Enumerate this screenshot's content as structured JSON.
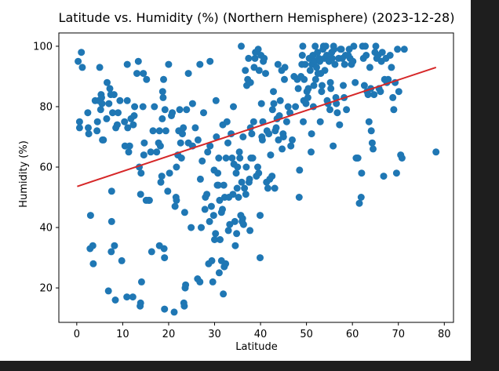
{
  "window": {
    "background": "#1e1e1e",
    "figure_background": "#ffffff"
  },
  "chart_data": {
    "type": "scatter",
    "title": "Latitude vs. Humidity (%) (Northern Hemisphere) (2023-12-28)",
    "xlabel": "Latitude",
    "ylabel": "Humidity (%)",
    "xlim": [
      -3.9,
      82
    ],
    "ylim": [
      8.6,
      104.4
    ],
    "xticks": [
      0,
      10,
      20,
      30,
      40,
      50,
      60,
      70,
      80
    ],
    "yticks": [
      20,
      40,
      60,
      80,
      100
    ],
    "grid": false,
    "legend": "none",
    "point_color": "#1f77b4",
    "line_color": "#d62728",
    "regression_line": {
      "x": [
        0.1,
        78.2
      ],
      "y": [
        53.6,
        93.0
      ]
    },
    "points": [
      [
        0.3,
        95
      ],
      [
        0.6,
        73
      ],
      [
        0.6,
        75
      ],
      [
        1,
        98
      ],
      [
        1.2,
        93
      ],
      [
        2.4,
        78
      ],
      [
        2.5,
        73
      ],
      [
        2.6,
        71
      ],
      [
        2.9,
        33
      ],
      [
        3,
        44
      ],
      [
        3.5,
        34
      ],
      [
        3.6,
        28
      ],
      [
        4,
        82
      ],
      [
        4.4,
        72
      ],
      [
        4.5,
        75
      ],
      [
        4.8,
        82
      ],
      [
        5,
        93
      ],
      [
        5.2,
        79
      ],
      [
        5.3,
        84
      ],
      [
        5.4,
        83
      ],
      [
        5.5,
        81
      ],
      [
        5.6,
        69
      ],
      [
        5.8,
        69
      ],
      [
        6.5,
        76
      ],
      [
        6.6,
        88
      ],
      [
        6.9,
        19
      ],
      [
        7,
        81
      ],
      [
        7.2,
        86
      ],
      [
        7.4,
        84
      ],
      [
        7.5,
        32
      ],
      [
        7.6,
        52
      ],
      [
        7.6,
        42
      ],
      [
        7.8,
        78
      ],
      [
        8.1,
        84
      ],
      [
        8.2,
        34
      ],
      [
        8.4,
        16
      ],
      [
        8.5,
        73
      ],
      [
        8.8,
        74
      ],
      [
        9,
        78
      ],
      [
        9.4,
        82
      ],
      [
        9.8,
        29
      ],
      [
        10.4,
        75
      ],
      [
        10.5,
        67
      ],
      [
        10.9,
        17
      ],
      [
        11,
        94
      ],
      [
        11,
        82
      ],
      [
        11.1,
        73
      ],
      [
        11.3,
        65
      ],
      [
        11.5,
        67
      ],
      [
        11.8,
        76
      ],
      [
        12.2,
        17
      ],
      [
        12.3,
        74
      ],
      [
        12.5,
        77
      ],
      [
        12.6,
        80
      ],
      [
        13.1,
        91
      ],
      [
        13.4,
        95
      ],
      [
        13.6,
        60
      ],
      [
        13.8,
        14
      ],
      [
        13.9,
        51
      ],
      [
        13.9,
        15
      ],
      [
        14,
        58
      ],
      [
        14.1,
        22
      ],
      [
        14.4,
        80
      ],
      [
        14.5,
        91
      ],
      [
        14.6,
        64
      ],
      [
        14.7,
        68
      ],
      [
        15.1,
        49
      ],
      [
        15.2,
        89
      ],
      [
        15.6,
        49
      ],
      [
        15.8,
        49
      ],
      [
        16.1,
        65
      ],
      [
        16.3,
        32
      ],
      [
        16.6,
        72
      ],
      [
        16.9,
        80
      ],
      [
        17.4,
        65
      ],
      [
        17.8,
        68
      ],
      [
        18,
        72
      ],
      [
        18,
        34
      ],
      [
        18.2,
        67
      ],
      [
        18.3,
        55
      ],
      [
        18.5,
        57
      ],
      [
        18.6,
        76
      ],
      [
        18.7,
        85
      ],
      [
        18.8,
        83
      ],
      [
        18.9,
        89
      ],
      [
        19,
        33
      ],
      [
        19.1,
        13
      ],
      [
        19.1,
        30
      ],
      [
        19.2,
        79
      ],
      [
        19.4,
        72
      ],
      [
        19.8,
        52
      ],
      [
        20,
        94
      ],
      [
        20.2,
        58
      ],
      [
        20.6,
        77
      ],
      [
        20.8,
        78
      ],
      [
        21.2,
        12
      ],
      [
        21.4,
        47
      ],
      [
        21.6,
        50
      ],
      [
        21.7,
        60
      ],
      [
        21.7,
        49
      ],
      [
        22,
        64
      ],
      [
        22.2,
        72
      ],
      [
        22.4,
        79
      ],
      [
        22.6,
        68
      ],
      [
        22.8,
        63
      ],
      [
        23,
        71
      ],
      [
        23.2,
        73
      ],
      [
        23.3,
        15
      ],
      [
        23.4,
        14
      ],
      [
        23.5,
        45
      ],
      [
        23.6,
        20
      ],
      [
        23.7,
        21
      ],
      [
        23.9,
        79
      ],
      [
        24.3,
        91
      ],
      [
        24.3,
        68
      ],
      [
        24.9,
        40
      ],
      [
        25.2,
        67
      ],
      [
        25.2,
        81
      ],
      [
        25.8,
        73
      ],
      [
        26.3,
        23
      ],
      [
        26.4,
        69
      ],
      [
        26.8,
        94
      ],
      [
        26.8,
        22
      ],
      [
        26.9,
        56
      ],
      [
        27.1,
        40
      ],
      [
        27.3,
        62
      ],
      [
        27.6,
        78
      ],
      [
        27.9,
        46
      ],
      [
        28,
        50
      ],
      [
        28.3,
        51
      ],
      [
        28.5,
        65
      ],
      [
        28.7,
        28
      ],
      [
        28.9,
        42
      ],
      [
        29,
        95
      ],
      [
        29,
        67
      ],
      [
        29.3,
        47
      ],
      [
        29.4,
        29
      ],
      [
        29.6,
        22
      ],
      [
        29.8,
        44
      ],
      [
        29.9,
        59
      ],
      [
        30,
        36
      ],
      [
        30.2,
        38
      ],
      [
        30.3,
        82
      ],
      [
        30.4,
        70
      ],
      [
        30.6,
        54
      ],
      [
        30.7,
        58
      ],
      [
        30.8,
        54
      ],
      [
        30.9,
        63
      ],
      [
        31,
        25
      ],
      [
        31.1,
        49
      ],
      [
        31.2,
        36
      ],
      [
        31.5,
        29
      ],
      [
        31.5,
        45
      ],
      [
        31.7,
        46
      ],
      [
        31.8,
        74
      ],
      [
        31.9,
        18
      ],
      [
        32,
        54
      ],
      [
        32.1,
        27
      ],
      [
        32.2,
        50
      ],
      [
        32.4,
        28
      ],
      [
        32.5,
        63
      ],
      [
        32.7,
        75
      ],
      [
        32.9,
        68
      ],
      [
        33,
        39
      ],
      [
        33.1,
        50
      ],
      [
        33.3,
        41
      ],
      [
        33.6,
        71
      ],
      [
        33.8,
        63
      ],
      [
        34,
        51
      ],
      [
        34.1,
        80
      ],
      [
        34.2,
        61
      ],
      [
        34.4,
        42
      ],
      [
        34.5,
        34
      ],
      [
        34.7,
        58
      ],
      [
        34.8,
        38
      ],
      [
        34.9,
        53
      ],
      [
        35,
        60
      ],
      [
        35.2,
        50
      ],
      [
        35.4,
        65
      ],
      [
        35.5,
        63
      ],
      [
        35.7,
        44
      ],
      [
        35.8,
        100
      ],
      [
        35.9,
        55
      ],
      [
        36,
        42
      ],
      [
        36.1,
        43
      ],
      [
        36.2,
        70
      ],
      [
        36.3,
        41
      ],
      [
        36.5,
        53
      ],
      [
        36.7,
        92
      ],
      [
        36.8,
        51
      ],
      [
        36.9,
        60
      ],
      [
        37,
        87
      ],
      [
        37.2,
        89
      ],
      [
        37.4,
        96
      ],
      [
        37.5,
        55
      ],
      [
        37.6,
        56
      ],
      [
        37.7,
        39
      ],
      [
        37.8,
        73
      ],
      [
        37.8,
        88
      ],
      [
        37.9,
        63
      ],
      [
        38.1,
        71
      ],
      [
        38.3,
        63
      ],
      [
        38.5,
        75
      ],
      [
        38.6,
        93
      ],
      [
        38.8,
        96
      ],
      [
        38.9,
        98
      ],
      [
        39.1,
        57
      ],
      [
        39.4,
        60
      ],
      [
        39.5,
        99
      ],
      [
        39.6,
        58
      ],
      [
        39.7,
        92
      ],
      [
        39.9,
        30
      ],
      [
        39.9,
        44
      ],
      [
        40.1,
        97
      ],
      [
        40.2,
        81
      ],
      [
        40.3,
        70
      ],
      [
        40.4,
        69
      ],
      [
        40.5,
        75
      ],
      [
        40.6,
        95
      ],
      [
        40.8,
        96
      ],
      [
        41.1,
        91
      ],
      [
        41.3,
        55
      ],
      [
        41.4,
        72
      ],
      [
        41.6,
        53
      ],
      [
        41.8,
        71
      ],
      [
        42,
        56
      ],
      [
        42.2,
        64
      ],
      [
        42.5,
        57
      ],
      [
        42.6,
        79
      ],
      [
        42.8,
        85
      ],
      [
        42.9,
        81
      ],
      [
        43.1,
        53
      ],
      [
        43.2,
        72
      ],
      [
        43.4,
        73
      ],
      [
        43.6,
        76
      ],
      [
        43.8,
        94
      ],
      [
        43.9,
        69
      ],
      [
        44.1,
        77
      ],
      [
        44.3,
        82
      ],
      [
        44.6,
        92
      ],
      [
        44.7,
        66
      ],
      [
        44.9,
        71
      ],
      [
        45,
        70
      ],
      [
        45.2,
        89
      ],
      [
        45.3,
        93
      ],
      [
        45.7,
        75
      ],
      [
        46,
        80
      ],
      [
        46.4,
        78
      ],
      [
        46.6,
        67
      ],
      [
        46.9,
        69
      ],
      [
        47.3,
        90
      ],
      [
        47.6,
        80
      ],
      [
        48,
        89
      ],
      [
        48.2,
        86
      ],
      [
        48.4,
        50
      ],
      [
        48.5,
        59
      ],
      [
        48.8,
        90
      ],
      [
        49,
        94
      ],
      [
        49.1,
        97
      ],
      [
        49.2,
        100
      ],
      [
        49.3,
        75
      ],
      [
        49.4,
        82
      ],
      [
        49.5,
        89
      ],
      [
        49.7,
        94
      ],
      [
        49.9,
        81
      ],
      [
        50.1,
        85
      ],
      [
        50.3,
        83
      ],
      [
        50.4,
        86
      ],
      [
        50.6,
        96
      ],
      [
        50.8,
        92
      ],
      [
        51,
        65
      ],
      [
        51.1,
        71
      ],
      [
        51.2,
        94
      ],
      [
        51.4,
        97
      ],
      [
        51.5,
        80
      ],
      [
        51.6,
        87
      ],
      [
        51.8,
        95
      ],
      [
        51.9,
        100
      ],
      [
        52,
        89
      ],
      [
        52.2,
        93
      ],
      [
        52.4,
        98
      ],
      [
        52.5,
        91
      ],
      [
        52.7,
        96
      ],
      [
        52.9,
        95
      ],
      [
        53,
        75
      ],
      [
        53.1,
        91
      ],
      [
        53.3,
        85
      ],
      [
        53.4,
        87
      ],
      [
        53.6,
        99
      ],
      [
        53.7,
        100
      ],
      [
        53.9,
        96
      ],
      [
        54,
        92
      ],
      [
        54.2,
        100
      ],
      [
        54.4,
        97
      ],
      [
        54.5,
        82
      ],
      [
        54.7,
        81
      ],
      [
        54.9,
        95
      ],
      [
        55.1,
        79
      ],
      [
        55.2,
        88
      ],
      [
        55.3,
        86
      ],
      [
        55.5,
        98
      ],
      [
        55.6,
        96
      ],
      [
        55.8,
        67
      ],
      [
        55.9,
        100
      ],
      [
        56,
        99
      ],
      [
        56.2,
        94
      ],
      [
        56.4,
        83
      ],
      [
        56.5,
        81
      ],
      [
        56.7,
        78
      ],
      [
        57,
        96
      ],
      [
        57.2,
        74
      ],
      [
        57.4,
        99
      ],
      [
        57.6,
        99
      ],
      [
        57.8,
        96
      ],
      [
        58,
        87
      ],
      [
        58.2,
        83
      ],
      [
        58.3,
        94
      ],
      [
        58.5,
        97
      ],
      [
        58.7,
        79
      ],
      [
        59.1,
        97
      ],
      [
        59.3,
        99
      ],
      [
        59.5,
        96
      ],
      [
        59.8,
        94
      ],
      [
        60.1,
        95
      ],
      [
        60.3,
        100
      ],
      [
        60.6,
        88
      ],
      [
        60.8,
        63
      ],
      [
        61,
        63
      ],
      [
        61.2,
        63
      ],
      [
        61.5,
        48
      ],
      [
        61.9,
        50
      ],
      [
        62,
        58
      ],
      [
        62.2,
        100
      ],
      [
        62.4,
        96
      ],
      [
        62.6,
        87
      ],
      [
        62.8,
        100
      ],
      [
        63,
        97
      ],
      [
        63.2,
        85
      ],
      [
        63.4,
        84
      ],
      [
        63.6,
        75
      ],
      [
        63.8,
        93
      ],
      [
        64,
        86
      ],
      [
        64.1,
        72
      ],
      [
        64.3,
        68
      ],
      [
        64.5,
        66
      ],
      [
        64.7,
        84
      ],
      [
        64.9,
        98
      ],
      [
        65.1,
        100
      ],
      [
        65.3,
        96
      ],
      [
        65.6,
        97
      ],
      [
        65.8,
        86
      ],
      [
        66.1,
        85
      ],
      [
        66.3,
        95
      ],
      [
        66.5,
        98
      ],
      [
        66.8,
        57
      ],
      [
        67,
        89
      ],
      [
        67.3,
        96
      ],
      [
        67.5,
        88
      ],
      [
        67.8,
        89
      ],
      [
        68.2,
        97
      ],
      [
        68.5,
        93
      ],
      [
        68.8,
        83
      ],
      [
        69,
        79
      ],
      [
        69.3,
        88
      ],
      [
        69.6,
        58
      ],
      [
        69.8,
        99
      ],
      [
        70.1,
        85
      ],
      [
        70.5,
        64
      ],
      [
        70.8,
        63
      ],
      [
        71.3,
        99
      ],
      [
        78.2,
        65
      ]
    ]
  }
}
